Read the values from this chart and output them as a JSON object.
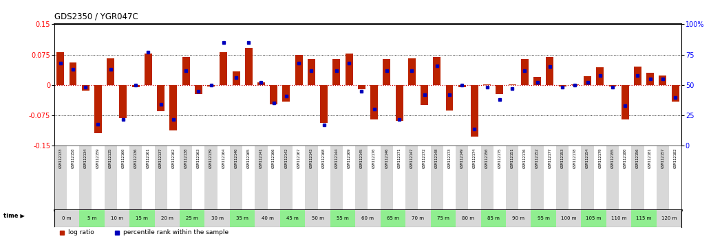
{
  "title": "GDS2350 / YGR047C",
  "ylim": [
    -0.15,
    0.15
  ],
  "yticks": [
    -0.15,
    -0.075,
    0,
    0.075,
    0.15
  ],
  "ytick_labels": [
    "-0.15",
    "-0.075",
    "0",
    "0.075",
    "0.15"
  ],
  "y2lim": [
    0,
    100
  ],
  "y2ticks": [
    0,
    25,
    50,
    75,
    100
  ],
  "y2tick_labels": [
    "0",
    "25",
    "50",
    "75",
    "100%"
  ],
  "bar_color": "#bb2200",
  "dot_color": "#0000bb",
  "zero_line_color": "#cc0000",
  "samples": [
    "GSM112133",
    "GSM112158",
    "GSM112134",
    "GSM112159",
    "GSM112135",
    "GSM112160",
    "GSM112136",
    "GSM112161",
    "GSM112137",
    "GSM112162",
    "GSM112138",
    "GSM112163",
    "GSM112139",
    "GSM112164",
    "GSM112140",
    "GSM112165",
    "GSM112141",
    "GSM112166",
    "GSM112142",
    "GSM112167",
    "GSM112143",
    "GSM112168",
    "GSM112144",
    "GSM112169",
    "GSM112145",
    "GSM112170",
    "GSM112146",
    "GSM112171",
    "GSM112147",
    "GSM112172",
    "GSM112148",
    "GSM112173",
    "GSM112149",
    "GSM112174",
    "GSM112150",
    "GSM112175",
    "GSM112151",
    "GSM112176",
    "GSM112152",
    "GSM112177",
    "GSM112153",
    "GSM112178",
    "GSM112154",
    "GSM112179",
    "GSM112155",
    "GSM112180",
    "GSM112156",
    "GSM112181",
    "GSM112157",
    "GSM112182"
  ],
  "time_labels": [
    "0 m",
    "5 m",
    "10 m",
    "15 m",
    "20 m",
    "25 m",
    "30 m",
    "35 m",
    "40 m",
    "45 m",
    "50 m",
    "55 m",
    "60 m",
    "65 m",
    "70 m",
    "75 m",
    "80 m",
    "85 m",
    "90 m",
    "95 m",
    "100 m",
    "105 m",
    "110 m",
    "115 m",
    "120 m"
  ],
  "log_ratios": [
    0.082,
    0.055,
    -0.014,
    -0.118,
    0.066,
    -0.082,
    -0.005,
    0.077,
    -0.065,
    -0.112,
    0.069,
    -0.022,
    -0.003,
    0.082,
    0.034,
    0.092,
    0.006,
    -0.048,
    -0.04,
    0.074,
    0.065,
    -0.093,
    0.064,
    0.077,
    -0.01,
    -0.085,
    0.065,
    -0.088,
    0.066,
    -0.05,
    0.069,
    -0.062,
    -0.005,
    -0.127,
    0.002,
    -0.022,
    0.001,
    0.064,
    0.02,
    0.07,
    -0.004,
    0.001,
    0.022,
    0.044,
    -0.003,
    -0.085,
    0.045,
    0.03,
    0.024,
    -0.04
  ],
  "percentile_ranks": [
    68,
    63,
    48,
    18,
    63,
    22,
    50,
    77,
    34,
    22,
    62,
    45,
    50,
    85,
    56,
    85,
    52,
    35,
    41,
    68,
    62,
    17,
    62,
    68,
    45,
    30,
    62,
    22,
    62,
    42,
    66,
    42,
    50,
    14,
    48,
    38,
    47,
    62,
    52,
    65,
    48,
    50,
    52,
    58,
    48,
    33,
    58,
    55,
    55,
    40
  ],
  "sample_col_color_even": "#d8d8d8",
  "sample_col_color_odd": "#ffffff",
  "time_col_color_even": "#d8d8d8",
  "time_col_color_odd": "#90ee90",
  "chart_bg": "#ffffff"
}
